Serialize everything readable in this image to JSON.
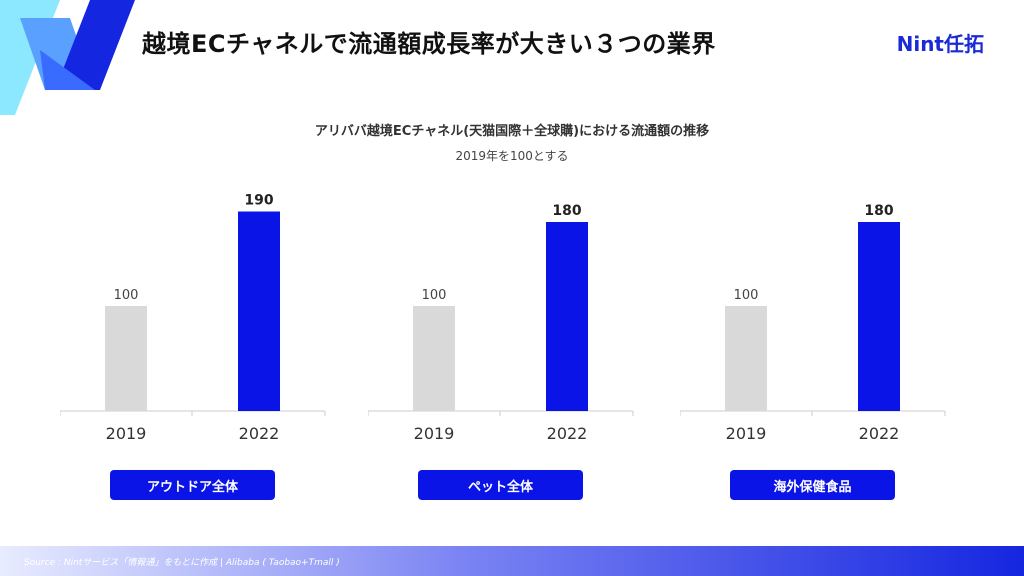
{
  "header": {
    "title": "越境ECチャネルで流通額成長率が大きい３つの業界",
    "brand": "Nint任拓"
  },
  "chart_subtitle": "アリババ越境ECチャネル(天猫国際＋全球購)における流通額の推移",
  "chart_note": "2019年を100とする",
  "colors": {
    "accent": "#0a14e6",
    "baseline_bar": "#d9d9d9",
    "axis": "#cccccc"
  },
  "chart_data": [
    {
      "type": "bar",
      "title": "アウトドア全体",
      "categories": [
        "2019",
        "2022"
      ],
      "values": [
        100,
        190
      ],
      "ylim": [
        0,
        200
      ]
    },
    {
      "type": "bar",
      "title": "ペット全体",
      "categories": [
        "2019",
        "2022"
      ],
      "values": [
        100,
        180
      ],
      "ylim": [
        0,
        200
      ]
    },
    {
      "type": "bar",
      "title": "海外保健食品",
      "categories": [
        "2019",
        "2022"
      ],
      "values": [
        100,
        180
      ],
      "ylim": [
        0,
        200
      ]
    }
  ],
  "footer": {
    "source": "Source : Nintサービス「情報通」をもとに作成 | Alibaba ( Taobao+Tmall )"
  }
}
